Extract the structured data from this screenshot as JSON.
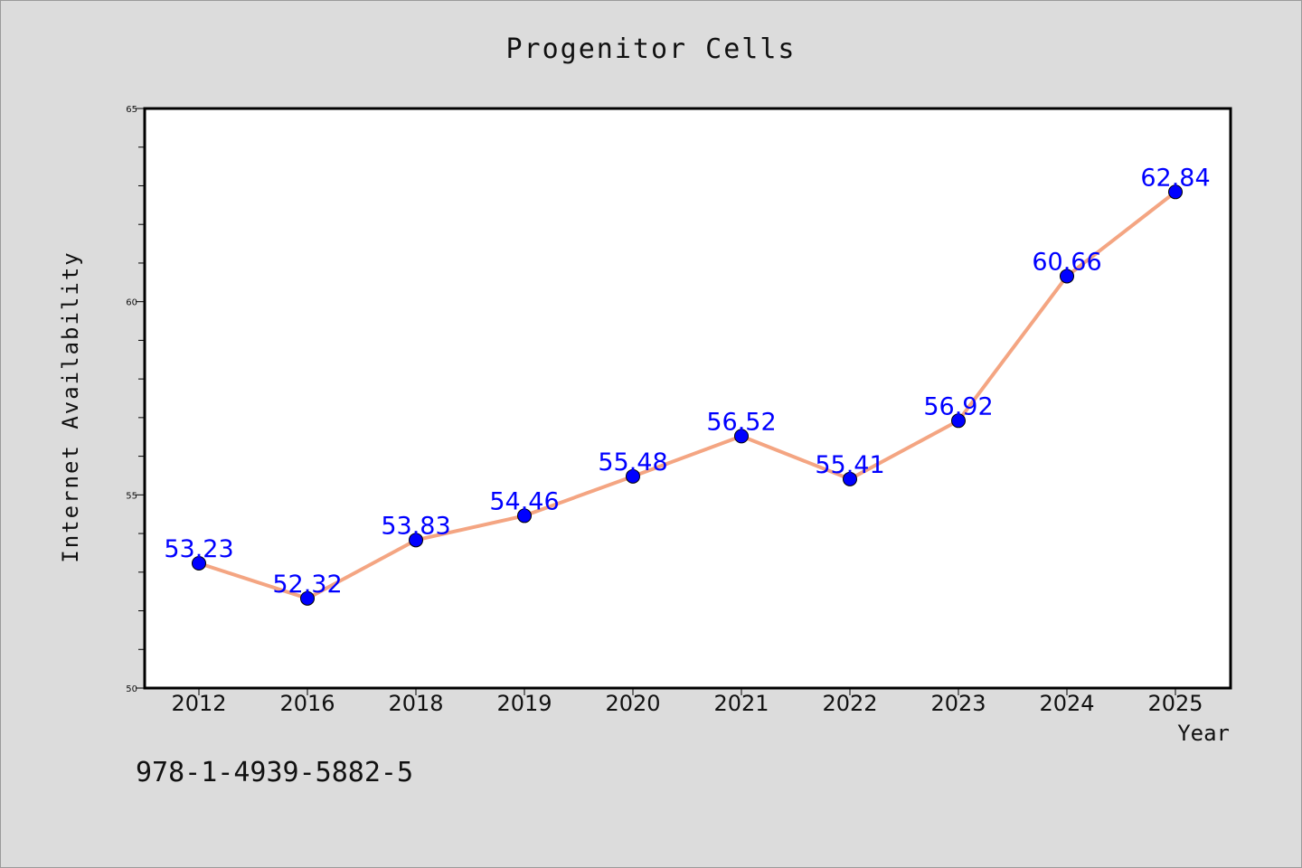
{
  "chart_data": {
    "type": "line",
    "title": "Progenitor Cells",
    "xlabel": "Year",
    "ylabel": "Internet Availability",
    "categories": [
      "2012",
      "2016",
      "2018",
      "2019",
      "2020",
      "2021",
      "2022",
      "2023",
      "2024",
      "2025"
    ],
    "series": [
      {
        "values": [
          53.23,
          52.32,
          53.83,
          54.46,
          55.48,
          56.52,
          55.41,
          56.92,
          60.66,
          62.84
        ],
        "labels": [
          "53.23",
          "52.32",
          "53.83",
          "54.46",
          "55.48",
          "56.52",
          "55.41",
          "56.92",
          "60.66",
          "62.84"
        ]
      }
    ],
    "ylim": [
      50,
      65
    ],
    "yticks": [
      "50",
      "55",
      "60",
      "65"
    ],
    "grid": false,
    "line_color": "#f4a582",
    "marker_color": "#0000ff",
    "label_color": "#0000ff"
  },
  "footer_code": "978-1-4939-5882-5"
}
